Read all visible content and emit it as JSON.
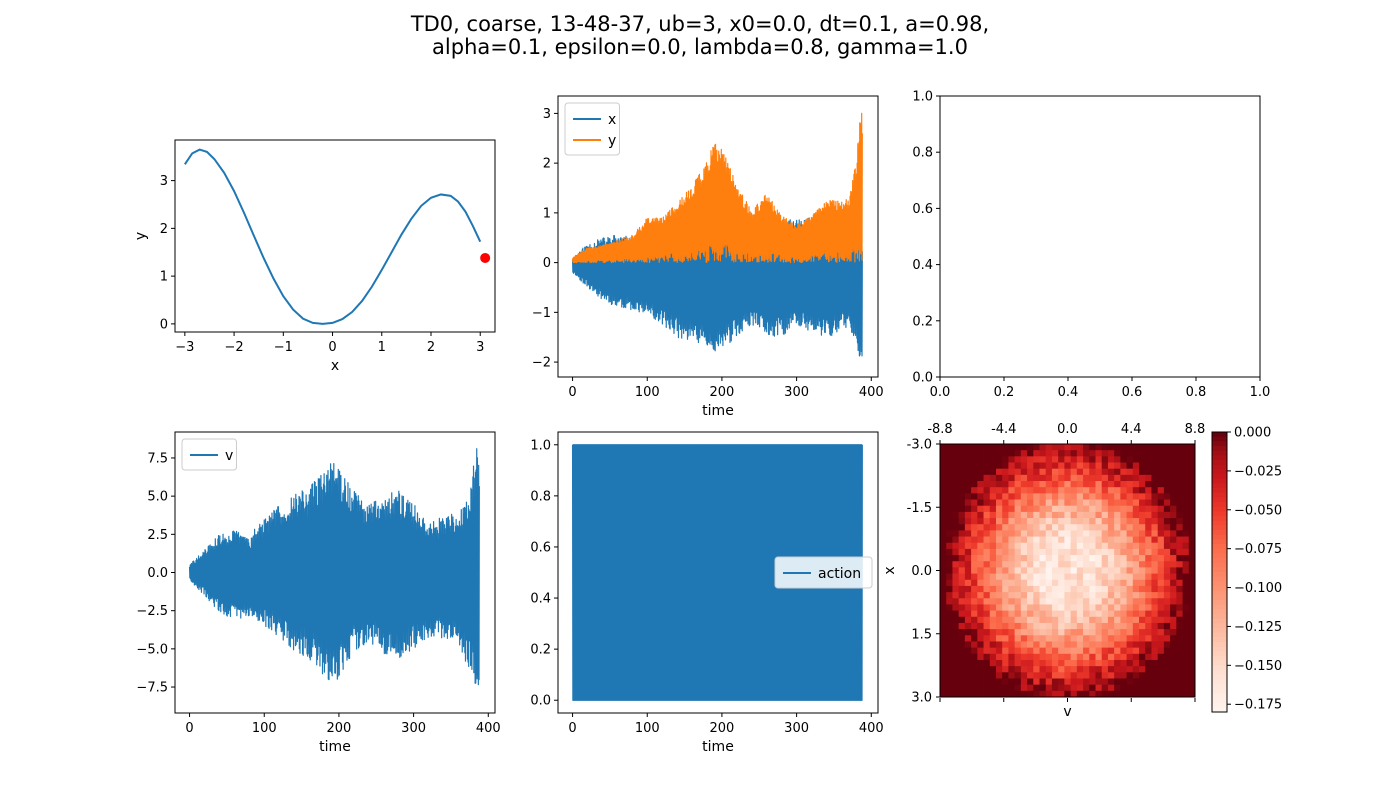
{
  "figure": {
    "title_line1": "TD0, coarse, 13-48-37, ub=3, x0=0.0, dt=0.1, a=0.98,",
    "title_line2": "alpha=0.1, epsilon=0.0, lambda=0.8, gamma=1.0"
  },
  "colors": {
    "blue": "#1f77b4",
    "orange": "#ff7f0e",
    "marker": "#ff0000"
  },
  "chart_data": [
    {
      "id": "track",
      "type": "line",
      "xlabel": "x",
      "ylabel": "y",
      "xlim": [
        -3.2,
        3.3
      ],
      "ylim": [
        -0.17,
        3.85
      ],
      "xticks": [
        -3,
        -2,
        -1,
        0,
        1,
        2,
        3
      ],
      "xtick_labels": [
        "−3",
        "−2",
        "−1",
        "0",
        "1",
        "2",
        "3"
      ],
      "yticks": [
        0,
        1,
        2,
        3
      ],
      "ytick_labels": [
        "0",
        "1",
        "2",
        "3"
      ],
      "series": [
        {
          "x": [
            -3.0,
            -2.85,
            -2.7,
            -2.55,
            -2.4,
            -2.2,
            -2.0,
            -1.8,
            -1.6,
            -1.4,
            -1.2,
            -1.0,
            -0.8,
            -0.6,
            -0.4,
            -0.2,
            0.0,
            0.2,
            0.4,
            0.6,
            0.8,
            1.0,
            1.2,
            1.4,
            1.6,
            1.8,
            2.0,
            2.2,
            2.4,
            2.55,
            2.7,
            2.85,
            3.0
          ],
          "y": [
            3.34,
            3.57,
            3.65,
            3.6,
            3.45,
            3.16,
            2.78,
            2.33,
            1.85,
            1.38,
            0.95,
            0.58,
            0.3,
            0.11,
            0.02,
            0.0,
            0.02,
            0.1,
            0.25,
            0.48,
            0.78,
            1.13,
            1.5,
            1.87,
            2.2,
            2.47,
            2.64,
            2.71,
            2.68,
            2.56,
            2.35,
            2.05,
            1.72
          ]
        }
      ],
      "marker": {
        "x": 3.1,
        "y": 1.38
      }
    },
    {
      "id": "position",
      "type": "line",
      "xlabel": "time",
      "ylabel": "",
      "xlim": [
        -19.5,
        409
      ],
      "ylim": [
        -2.3,
        3.35
      ],
      "xticks": [
        0,
        100,
        200,
        300,
        400
      ],
      "xtick_labels": [
        "0",
        "100",
        "200",
        "300",
        "400"
      ],
      "yticks": [
        -2,
        -1,
        0,
        1,
        2,
        3
      ],
      "ytick_labels": [
        "−2",
        "−1",
        "0",
        "1",
        "2",
        "3"
      ],
      "legend": {
        "location": "upper left",
        "entries": [
          "x",
          "y"
        ]
      },
      "series": [
        {
          "name": "x",
          "color": "#1f77b4",
          "style": "oscillating band",
          "t": [
            0,
            20,
            40,
            60,
            80,
            100,
            120,
            140,
            160,
            180,
            190,
            200,
            220,
            240,
            260,
            280,
            300,
            320,
            340,
            360,
            370,
            380,
            385,
            388
          ],
          "upper": [
            0.1,
            0.38,
            0.5,
            0.58,
            0.5,
            0.55,
            0.75,
            0.95,
            0.88,
            0.8,
            0.78,
            0.9,
            0.72,
            0.55,
            0.88,
            0.9,
            0.85,
            0.95,
            0.98,
            0.72,
            0.6,
            0.6,
            0.6,
            0.7
          ],
          "lower": [
            -0.2,
            -0.5,
            -0.75,
            -0.9,
            -0.95,
            -1.05,
            -1.25,
            -1.5,
            -1.6,
            -1.65,
            -1.8,
            -1.75,
            -1.5,
            -1.25,
            -1.5,
            -1.5,
            -1.28,
            -1.45,
            -1.55,
            -1.35,
            -1.3,
            -1.6,
            -2.1,
            -2.05
          ]
        },
        {
          "name": "y",
          "color": "#ff7f0e",
          "style": "oscillating band",
          "t": [
            0,
            20,
            40,
            60,
            80,
            100,
            120,
            140,
            160,
            180,
            190,
            200,
            220,
            240,
            260,
            280,
            300,
            320,
            340,
            360,
            370,
            380,
            385,
            388
          ],
          "upper": [
            0.1,
            0.3,
            0.35,
            0.45,
            0.55,
            0.9,
            0.9,
            1.2,
            1.55,
            2.05,
            2.45,
            2.35,
            1.55,
            1.05,
            1.4,
            0.95,
            0.75,
            0.95,
            1.25,
            1.25,
            1.3,
            2.05,
            3.15,
            3.0
          ],
          "lower": [
            0.0,
            0.0,
            0.0,
            0.0,
            0.0,
            0.0,
            0.0,
            0.0,
            0.0,
            0.0,
            0.0,
            0.0,
            0.0,
            0.0,
            0.0,
            0.0,
            0.0,
            0.0,
            0.0,
            0.0,
            0.0,
            0.0,
            0.0,
            0.0
          ]
        }
      ]
    },
    {
      "id": "empty",
      "type": "line",
      "xlabel": "",
      "ylabel": "",
      "xlim": [
        0,
        1
      ],
      "ylim": [
        0,
        1
      ],
      "xticks": [
        0,
        0.2,
        0.4,
        0.6,
        0.8,
        1.0
      ],
      "xtick_labels": [
        "0.0",
        "0.2",
        "0.4",
        "0.6",
        "0.8",
        "1.0"
      ],
      "yticks": [
        0,
        0.2,
        0.4,
        0.6,
        0.8,
        1.0
      ],
      "ytick_labels": [
        "0.0",
        "0.2",
        "0.4",
        "0.6",
        "0.8",
        "1.0"
      ],
      "series": []
    },
    {
      "id": "velocity",
      "type": "line",
      "xlabel": "time",
      "ylabel": "",
      "xlim": [
        -19.5,
        409
      ],
      "ylim": [
        -9.2,
        9.2
      ],
      "xticks": [
        0,
        100,
        200,
        300,
        400
      ],
      "xtick_labels": [
        "0",
        "100",
        "200",
        "300",
        "400"
      ],
      "yticks": [
        -7.5,
        -5.0,
        -2.5,
        0.0,
        2.5,
        5.0,
        7.5
      ],
      "ytick_labels": [
        "−7.5",
        "−5.0",
        "−2.5",
        "0.0",
        "2.5",
        "5.0",
        "7.5"
      ],
      "legend": {
        "location": "upper left",
        "entries": [
          "v"
        ]
      },
      "series": [
        {
          "name": "v",
          "color": "#1f77b4",
          "style": "oscillating band",
          "t": [
            0,
            20,
            40,
            60,
            80,
            100,
            120,
            140,
            160,
            180,
            190,
            200,
            220,
            240,
            260,
            280,
            300,
            320,
            340,
            360,
            370,
            380,
            385,
            388
          ],
          "upper": [
            0.5,
            1.5,
            2.5,
            2.8,
            2.5,
            3.5,
            4.5,
            5.2,
            5.6,
            6.8,
            7.4,
            7.0,
            5.5,
            4.5,
            5.2,
            5.4,
            4.5,
            3.5,
            3.6,
            4.0,
            5.0,
            7.0,
            8.4,
            8.6
          ],
          "lower": [
            -0.5,
            -1.5,
            -2.7,
            -3.0,
            -3.0,
            -3.5,
            -4.2,
            -5.1,
            -5.7,
            -6.8,
            -7.3,
            -7.0,
            -5.3,
            -4.5,
            -5.3,
            -5.6,
            -5.0,
            -4.3,
            -4.3,
            -4.8,
            -6.0,
            -7.3,
            -8.1,
            -8.2
          ]
        }
      ]
    },
    {
      "id": "action",
      "type": "line",
      "xlabel": "time",
      "ylabel": "",
      "xlim": [
        -19.5,
        409
      ],
      "ylim": [
        -0.05,
        1.05
      ],
      "xticks": [
        0,
        100,
        200,
        300,
        400
      ],
      "xtick_labels": [
        "0",
        "100",
        "200",
        "300",
        "400"
      ],
      "yticks": [
        0.0,
        0.2,
        0.4,
        0.6,
        0.8,
        1.0
      ],
      "ytick_labels": [
        "0.0",
        "0.2",
        "0.4",
        "0.6",
        "0.8",
        "1.0"
      ],
      "legend": {
        "location": "center right",
        "entries": [
          "action"
        ]
      },
      "series": [
        {
          "name": "action",
          "color": "#1f77b4",
          "style": "oscillating band",
          "t": [
            0,
            388
          ],
          "upper": [
            1,
            1
          ],
          "lower": [
            0,
            0
          ]
        }
      ]
    },
    {
      "id": "value-map",
      "type": "heatmap",
      "colormap": "Reds_r",
      "xlabel": "v",
      "ylabel": "x",
      "xtick_labels": [
        "-8.8",
        "-4.4",
        "0.0",
        "4.4",
        "8.8"
      ],
      "xticks": [
        -8.8,
        -4.4,
        0.0,
        4.4,
        8.8
      ],
      "ytick_labels": [
        "-3.0",
        "-1.5",
        "0.0",
        "1.5",
        "3.0"
      ],
      "yticks": [
        -3.0,
        -1.5,
        0.0,
        1.5,
        3.0
      ],
      "x_range": [
        -8.8,
        8.8
      ],
      "y_range": [
        -3.0,
        3.0
      ],
      "grid": {
        "rows": 41,
        "cols": 41
      },
      "value_range": [
        -0.18,
        0.0
      ],
      "description_profile": {
        "r": [
          0.0,
          0.08,
          0.18,
          0.3,
          0.45,
          0.6,
          0.72,
          0.85,
          0.95,
          1.0
        ],
        "value": [
          -0.17,
          -0.15,
          -0.16,
          -0.15,
          -0.12,
          -0.09,
          -0.06,
          -0.03,
          -0.01,
          0.0
        ]
      },
      "colorbar": {
        "ticks": [
          0.0,
          -0.025,
          -0.05,
          -0.075,
          -0.1,
          -0.125,
          -0.15,
          -0.175
        ],
        "tick_labels": [
          "0.000",
          "−0.025",
          "−0.050",
          "−0.075",
          "−0.100",
          "−0.125",
          "−0.150",
          "−0.175"
        ]
      }
    }
  ]
}
